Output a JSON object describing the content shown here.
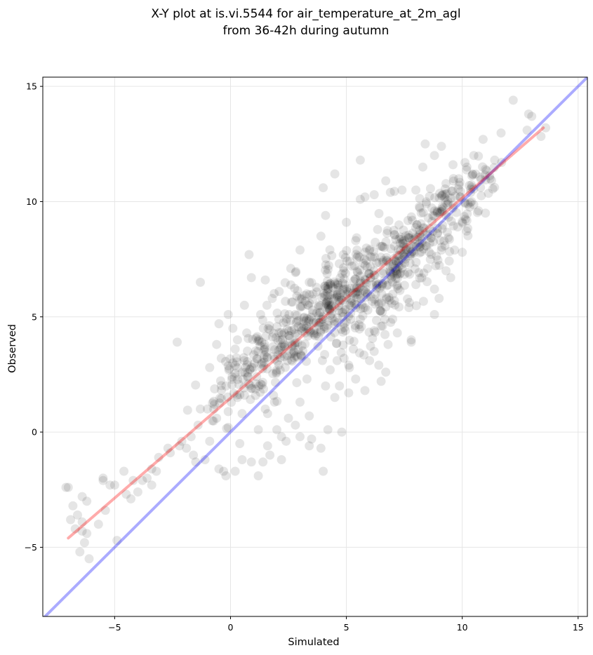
{
  "chart_data": {
    "type": "scatter",
    "title_lines": [
      "X-Y plot at is.vi.5544 for air_temperature_at_2m_agl",
      "from 36-42h during autumn"
    ],
    "xlabel": "Simulated",
    "ylabel": "Observed",
    "xlim": [
      -8.1,
      15.4
    ],
    "ylim": [
      -8.0,
      15.4
    ],
    "xticks": [
      -5,
      0,
      5,
      10,
      15
    ],
    "yticks": [
      -5,
      0,
      5,
      10,
      15
    ],
    "xtick_labels": [
      "−5",
      "0",
      "5",
      "10",
      "15"
    ],
    "ytick_labels": [
      "−5",
      "0",
      "5",
      "10",
      "15"
    ],
    "grid": true,
    "point_color": "#000000",
    "point_alpha": 0.1,
    "regression_line": {
      "color": "#ff0000",
      "x": [
        -7.0,
        13.5
      ],
      "y": [
        -4.6,
        13.2
      ]
    },
    "identity_line": {
      "color": "#0000ff",
      "x": [
        -8.1,
        15.4
      ],
      "y": [
        -8.1,
        15.4
      ]
    },
    "points": [
      [
        12.2,
        14.4
      ],
      [
        13.0,
        13.7
      ],
      [
        12.8,
        13.1
      ],
      [
        13.6,
        13.2
      ],
      [
        10.9,
        12.7
      ],
      [
        8.4,
        12.5
      ],
      [
        9.1,
        12.4
      ],
      [
        10.5,
        12.0
      ],
      [
        8.8,
        12.0
      ],
      [
        11.4,
        11.8
      ],
      [
        5.6,
        11.8
      ],
      [
        8.3,
        11.5
      ],
      [
        11.7,
        11.7
      ],
      [
        9.6,
        11.6
      ],
      [
        10.2,
        11.5
      ],
      [
        11.0,
        11.4
      ],
      [
        4.5,
        11.2
      ],
      [
        5.8,
        10.2
      ],
      [
        5.6,
        10.1
      ],
      [
        4.0,
        10.6
      ],
      [
        6.7,
        10.9
      ],
      [
        10.3,
        10.7
      ],
      [
        11.2,
        11.0
      ],
      [
        9.9,
        10.2
      ],
      [
        10.4,
        10.0
      ],
      [
        6.9,
        10.4
      ],
      [
        7.4,
        10.5
      ],
      [
        8.0,
        10.5
      ],
      [
        6.2,
        10.3
      ],
      [
        11.0,
        9.5
      ],
      [
        10.7,
        9.6
      ],
      [
        9.3,
        9.4
      ],
      [
        4.1,
        9.4
      ],
      [
        5.0,
        9.1
      ],
      [
        9.8,
        8.9
      ],
      [
        10.0,
        7.8
      ],
      [
        8.6,
        8.2
      ],
      [
        9.1,
        7.9
      ],
      [
        9.3,
        7.0
      ],
      [
        9.5,
        6.7
      ],
      [
        8.5,
        7.1
      ],
      [
        8.8,
        6.2
      ],
      [
        9.0,
        5.8
      ],
      [
        7.7,
        5.4
      ],
      [
        8.0,
        6.4
      ],
      [
        8.8,
        5.1
      ],
      [
        7.5,
        7.6
      ],
      [
        7.8,
        4.0
      ],
      [
        7.8,
        3.9
      ],
      [
        7.0,
        4.9
      ],
      [
        6.2,
        4.4
      ],
      [
        6.8,
        3.8
      ],
      [
        6.2,
        3.5
      ],
      [
        6.7,
        2.6
      ],
      [
        6.5,
        2.2
      ],
      [
        6.0,
        3.1
      ],
      [
        5.3,
        3.6
      ],
      [
        4.9,
        3.2
      ],
      [
        5.6,
        4.9
      ],
      [
        4.1,
        2.0
      ],
      [
        5.1,
        1.7
      ],
      [
        4.7,
        2.0
      ],
      [
        5.4,
        2.3
      ],
      [
        4.5,
        1.5
      ],
      [
        4.2,
        0.1
      ],
      [
        3.4,
        0.7
      ],
      [
        3.9,
        -0.7
      ],
      [
        4.0,
        -1.7
      ],
      [
        3.4,
        -0.6
      ],
      [
        3.0,
        -0.2
      ],
      [
        2.4,
        -0.4
      ],
      [
        2.2,
        -0.2
      ],
      [
        3.0,
        1.3
      ],
      [
        2.5,
        0.6
      ],
      [
        2.0,
        0.1
      ],
      [
        1.6,
        -0.6
      ],
      [
        1.4,
        -1.3
      ],
      [
        1.2,
        -1.9
      ],
      [
        0.9,
        -1.3
      ],
      [
        0.5,
        -1.2
      ],
      [
        0.2,
        -1.7
      ],
      [
        -0.3,
        -1.7
      ],
      [
        -0.5,
        -1.6
      ],
      [
        -0.2,
        -1.9
      ],
      [
        0.4,
        -0.5
      ],
      [
        -0.1,
        0.2
      ],
      [
        0.5,
        0.8
      ],
      [
        1.2,
        0.1
      ],
      [
        1.6,
        0.8
      ],
      [
        1.9,
        1.3
      ],
      [
        1.1,
        2.1
      ],
      [
        0.6,
        1.6
      ],
      [
        0.2,
        2.4
      ],
      [
        -0.2,
        2.0
      ],
      [
        -0.7,
        1.2
      ],
      [
        -1.0,
        1.0
      ],
      [
        -0.9,
        -0.4
      ],
      [
        -1.1,
        -1.2
      ],
      [
        -1.6,
        -1.0
      ],
      [
        -1.7,
        -0.2
      ],
      [
        -1.4,
        0.3
      ],
      [
        -1.3,
        1.0
      ],
      [
        -2.1,
        -0.4
      ],
      [
        -2.2,
        -0.6
      ],
      [
        -2.7,
        -0.7
      ],
      [
        -3.1,
        -1.1
      ],
      [
        -3.2,
        -1.7
      ],
      [
        -3.4,
        -2.3
      ],
      [
        -3.8,
        -2.1
      ],
      [
        -4.0,
        -2.6
      ],
      [
        -4.3,
        -2.9
      ],
      [
        -4.6,
        -1.7
      ],
      [
        -4.5,
        -2.7
      ],
      [
        -5.0,
        -2.3
      ],
      [
        -5.2,
        -2.3
      ],
      [
        -5.5,
        -2.1
      ],
      [
        -5.4,
        -3.4
      ],
      [
        -5.5,
        -2.0
      ],
      [
        -6.2,
        -3.0
      ],
      [
        -6.4,
        -2.8
      ],
      [
        -6.4,
        -3.9
      ],
      [
        -6.6,
        -3.6
      ],
      [
        -6.7,
        -4.2
      ],
      [
        -6.9,
        -3.8
      ],
      [
        -7.0,
        -2.4
      ],
      [
        -7.1,
        -2.4
      ],
      [
        -6.8,
        -3.2
      ],
      [
        -6.4,
        -4.3
      ],
      [
        -6.2,
        -4.4
      ],
      [
        -6.3,
        -4.8
      ],
      [
        -6.1,
        -5.5
      ],
      [
        -6.5,
        -5.2
      ],
      [
        -5.7,
        -4.0
      ],
      [
        -4.9,
        -4.7
      ],
      [
        -2.3,
        3.9
      ],
      [
        -1.3,
        6.5
      ],
      [
        -0.5,
        4.7
      ],
      [
        0.3,
        4.0
      ],
      [
        0.1,
        4.5
      ],
      [
        -0.1,
        5.1
      ],
      [
        0.6,
        5.5
      ],
      [
        0.8,
        7.7
      ],
      [
        0.9,
        6.7
      ],
      [
        1.5,
        6.6
      ],
      [
        1.8,
        5.8
      ],
      [
        2.1,
        6.1
      ],
      [
        2.6,
        7.1
      ],
      [
        3.0,
        7.9
      ],
      [
        3.4,
        6.5
      ],
      [
        3.9,
        8.5
      ],
      [
        1.3,
        5.1
      ],
      [
        0.7,
        4.3
      ],
      [
        0.2,
        3.6
      ],
      [
        -0.4,
        3.2
      ],
      [
        -0.9,
        2.8
      ],
      [
        -0.6,
        3.8
      ],
      [
        0.1,
        3.0
      ],
      [
        0.5,
        2.6
      ],
      [
        1.0,
        2.8
      ],
      [
        0.3,
        1.5
      ],
      [
        1.5,
        1.0
      ],
      [
        2.8,
        0.3
      ],
      [
        3.5,
        -0.3
      ],
      [
        4.8,
        0.0
      ],
      [
        2.2,
        -1.2
      ],
      [
        1.7,
        -1.0
      ],
      [
        -1.5,
        -1.3
      ],
      [
        -2.6,
        -0.9
      ],
      [
        -3.4,
        -1.6
      ],
      [
        -3.6,
        -2.0
      ],
      [
        -4.2,
        -2.1
      ],
      [
        -1.9,
        -0.7
      ],
      [
        -0.6,
        0.6
      ],
      [
        4.9,
        4.7
      ],
      [
        3.3,
        2.3
      ],
      [
        5.1,
        2.9
      ],
      [
        4.6,
        3.1
      ],
      [
        6.4,
        2.9
      ],
      [
        2.7,
        3.4
      ],
      [
        3.6,
        4.3
      ],
      [
        7.2,
        4.3
      ],
      [
        5.8,
        1.8
      ],
      [
        4.3,
        2.7
      ]
    ],
    "dense_centers": [
      [
        6.0,
        6.6
      ],
      [
        7.5,
        8.0
      ],
      [
        4.7,
        6.0
      ],
      [
        3.3,
        4.6
      ],
      [
        8.9,
        9.3
      ],
      [
        2.3,
        3.6
      ],
      [
        9.9,
        10.4
      ],
      [
        1.4,
        3.1
      ],
      [
        5.2,
        6.9
      ],
      [
        6.9,
        6.4
      ],
      [
        4.0,
        5.0
      ],
      [
        8.1,
        8.4
      ],
      [
        3.0,
        5.5
      ],
      [
        6.5,
        5.2
      ],
      [
        0.6,
        2.4
      ]
    ],
    "dense_spread": 1.1
  }
}
